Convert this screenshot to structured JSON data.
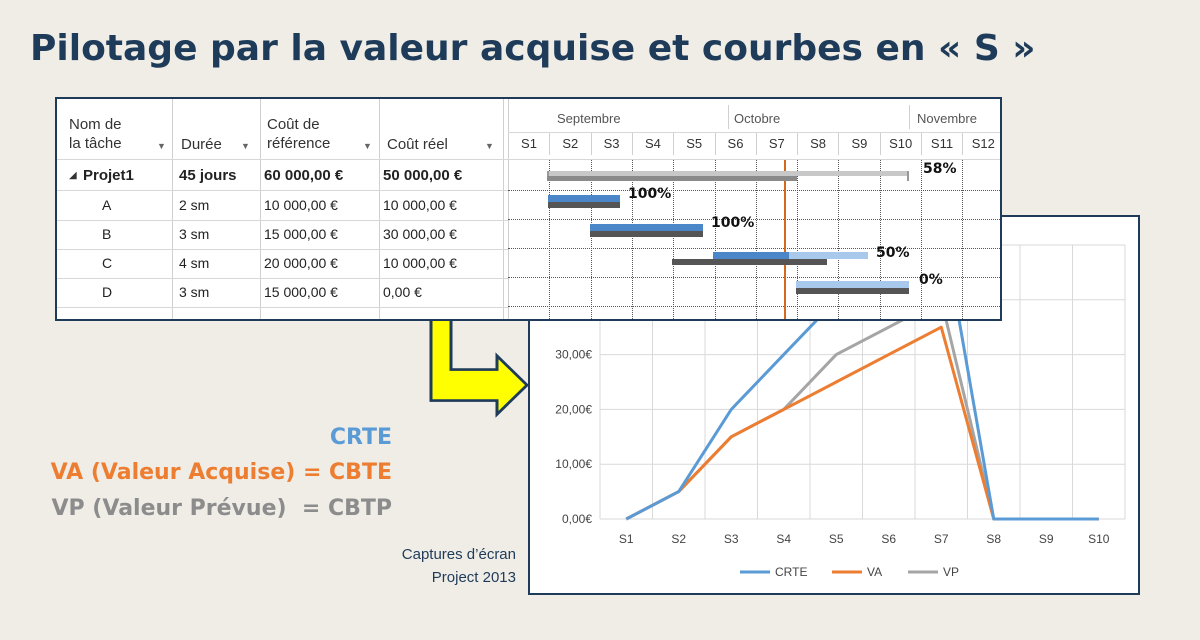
{
  "title": "Pilotage par la valeur acquise et courbes en « S »",
  "gantt": {
    "headers": {
      "name": "Nom de\nla tâche",
      "duration": "Durée",
      "baseline_cost": "Coût de\nréférence",
      "actual_cost": "Coût réel"
    },
    "months": [
      "Septembre",
      "Octobre",
      "Novembre"
    ],
    "weeks": [
      "S1",
      "S2",
      "S3",
      "S4",
      "S5",
      "S6",
      "S7",
      "S8",
      "S9",
      "S10",
      "S11",
      "S12"
    ],
    "rows": [
      {
        "name": "Projet1",
        "duration": "45 jours",
        "baseline_cost": "60 000,00 €",
        "actual_cost": "50 000,00 €",
        "percent": "58%",
        "summary": true
      },
      {
        "name": "A",
        "duration": "2 sm",
        "baseline_cost": "10 000,00 €",
        "actual_cost": "10 000,00 €",
        "percent": "100%"
      },
      {
        "name": "B",
        "duration": "3 sm",
        "baseline_cost": "15 000,00 €",
        "actual_cost": "30 000,00 €",
        "percent": "100%"
      },
      {
        "name": "C",
        "duration": "4 sm",
        "baseline_cost": "20 000,00 €",
        "actual_cost": "10 000,00 €",
        "percent": "50%"
      },
      {
        "name": "D",
        "duration": "3 sm",
        "baseline_cost": "15 000,00 €",
        "actual_cost": "0,00 €",
        "percent": "0%"
      }
    ]
  },
  "labels": {
    "crte": "CRTE",
    "va": "VA (Valeur Acquise) = CBTE",
    "vp": "VP (Valeur Prévue)  = CBTP"
  },
  "caption": {
    "line1": "Captures d’écran",
    "line2": "Project 2013"
  },
  "colors": {
    "crte": "#5b9bd5",
    "va": "#ed7d31",
    "vp": "#a5a5a5",
    "title": "#1f3b5a",
    "arrow": "#ffff00"
  },
  "chart_data": {
    "type": "line",
    "categories": [
      "S1",
      "S2",
      "S3",
      "S4",
      "S5",
      "S6",
      "S7",
      "S8",
      "S9",
      "S10"
    ],
    "y_tick_labels": [
      "0,00€",
      "10,00€",
      "20,00€",
      "30,00€",
      "40,00€"
    ],
    "ylim": [
      0,
      50
    ],
    "grid": true,
    "legend": "bottom",
    "series": [
      {
        "name": "CRTE",
        "color": "#5b9bd5",
        "values": [
          0,
          5,
          20,
          30,
          40,
          45,
          55,
          0,
          0,
          0
        ]
      },
      {
        "name": "VA",
        "color": "#ed7d31",
        "values": [
          0,
          5,
          15,
          20,
          25,
          30,
          35,
          0,
          0,
          0
        ]
      },
      {
        "name": "VP",
        "color": "#a5a5a5",
        "values": [
          0,
          5,
          15,
          20,
          30,
          35,
          40,
          0,
          0,
          0
        ]
      }
    ]
  }
}
